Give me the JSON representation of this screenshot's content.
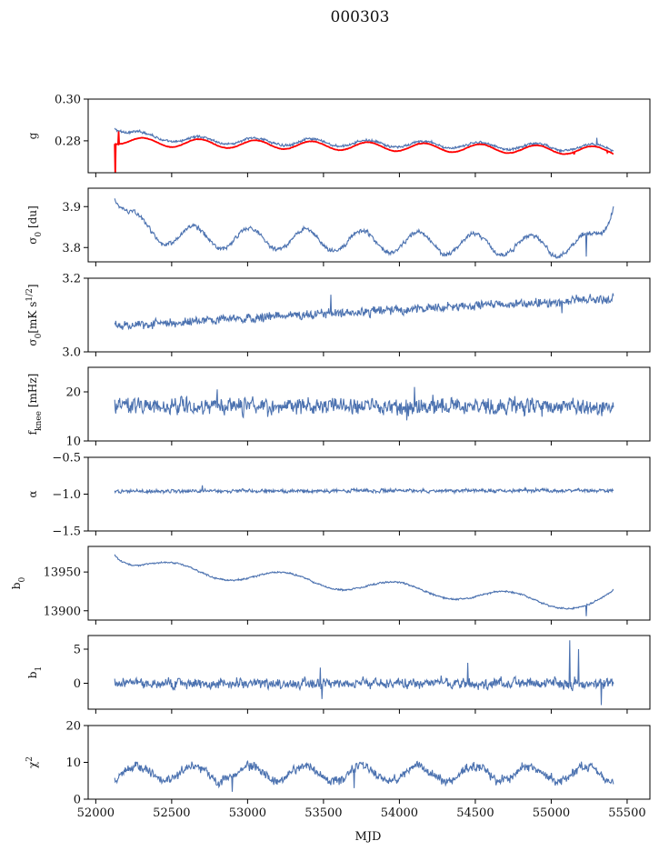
{
  "figure": {
    "title": "000303",
    "xlabel": "MJD"
  },
  "colors": {
    "series": "#4c72b0",
    "model": "#ff0000",
    "axes": "#000000"
  },
  "chart_data": {
    "type": "line",
    "shared_x": true,
    "xlim": [
      51950,
      55650
    ],
    "xticks": [
      52000,
      52500,
      53000,
      53500,
      54000,
      54500,
      55000,
      55500
    ],
    "x_range": [
      52125,
      55410
    ],
    "panels": [
      {
        "id": "g",
        "ylabel": "g",
        "ylim": [
          0.2647,
          0.3
        ],
        "yticks": [
          0.28,
          0.3
        ],
        "ytick_labels": [
          "0.28",
          "0.30"
        ],
        "series": [
          {
            "role": "data",
            "base": 0.281,
            "start_level": 0.2872,
            "start_decay_days": 150,
            "trend_end": 0.2765,
            "osc_amp": 0.0016,
            "osc_period_days": 370,
            "osc_phase_days": 52590,
            "noise": 0.00045,
            "spikes": [
              {
                "x": 55300,
                "y": 0.2815
              }
            ]
          },
          {
            "role": "model",
            "base": 0.2795,
            "start_level": 0.2805,
            "start_decay_days": 100,
            "trend_end": 0.2752,
            "osc_amp": 0.002,
            "osc_period_days": 370,
            "osc_phase_days": 52590,
            "noise": 8e-05,
            "spikes": [
              {
                "x": 52130,
                "y": 0.2635
              },
              {
                "x": 52150,
                "y": 0.2845
              },
              {
                "x": 55150,
                "y": 0.2735
              },
              {
                "x": 55370,
                "y": 0.2745
              }
            ]
          }
        ]
      },
      {
        "id": "sigma0-du",
        "ylabel": "σ0 [du]",
        "ylim": [
          3.765,
          3.945
        ],
        "yticks": [
          3.8,
          3.9
        ],
        "ytick_labels": [
          "3.8",
          "3.9"
        ],
        "series": [
          {
            "role": "data",
            "base": 3.83,
            "start_level": 3.935,
            "start_decay_days": 110,
            "trend_end": 3.8,
            "osc_amp": 0.026,
            "osc_period_days": 370,
            "osc_phase_days": 52550,
            "noise": 0.004,
            "end_level": 3.9,
            "end_rise_days": 80,
            "spikes": [
              {
                "x": 55230,
                "y": 3.778
              }
            ]
          }
        ]
      },
      {
        "id": "sigma0-mk",
        "ylabel": "σ0[mK s^1/2]",
        "ylim": [
          3.0,
          3.2
        ],
        "yticks": [
          3.0,
          3.2
        ],
        "ytick_labels": [
          "3.0",
          "3.2"
        ],
        "series": [
          {
            "role": "data",
            "base": 3.072,
            "start_level": 3.072,
            "start_decay_days": 50,
            "trend_end": 3.145,
            "osc_amp": 0.0,
            "osc_period_days": 370,
            "osc_phase_days": 52550,
            "noise": 0.009,
            "spikes": [
              {
                "x": 53550,
                "y": 3.155
              },
              {
                "x": 55070,
                "y": 3.105
              }
            ]
          }
        ]
      },
      {
        "id": "fknee",
        "ylabel": "f_knee [mHz]",
        "ylim": [
          10,
          25
        ],
        "yticks": [
          10,
          20
        ],
        "ytick_labels": [
          "10",
          "20"
        ],
        "series": [
          {
            "role": "data",
            "base": 17.0,
            "start_level": 17.0,
            "start_decay_days": 50,
            "trend_end": 17.0,
            "osc_amp": 0.0,
            "osc_period_days": 370,
            "osc_phase_days": 52550,
            "noise": 1.2,
            "spikes": [
              {
                "x": 52800,
                "y": 20.5
              },
              {
                "x": 54100,
                "y": 21.0
              },
              {
                "x": 54050,
                "y": 14.2
              }
            ]
          }
        ]
      },
      {
        "id": "alpha",
        "ylabel": "α",
        "ylim": [
          -1.5,
          -0.5
        ],
        "yticks": [
          -1.5,
          -1.0,
          -0.5
        ],
        "ytick_labels": [
          "−1.5",
          "−1.0",
          "−0.5"
        ],
        "series": [
          {
            "role": "data",
            "base": -0.96,
            "start_level": -0.96,
            "start_decay_days": 50,
            "trend_end": -0.95,
            "osc_amp": 0.0,
            "osc_period_days": 370,
            "osc_phase_days": 52550,
            "noise": 0.018,
            "spikes": [
              {
                "x": 52700,
                "y": -0.88
              }
            ]
          }
        ]
      },
      {
        "id": "b0",
        "ylabel": "b0",
        "ylim": [
          13888,
          13983
        ],
        "yticks": [
          13900,
          13950
        ],
        "ytick_labels": [
          "13900",
          "13950"
        ],
        "series": [
          {
            "role": "data",
            "base": 13960,
            "start_level": 13980,
            "start_decay_days": 90,
            "trend_end": 13905,
            "osc_amp": 8,
            "osc_period_days": 740,
            "osc_phase_days": 52310,
            "noise": 0.8,
            "end_level": 13927,
            "end_rise_days": 80,
            "spikes": [
              {
                "x": 55230,
                "y": 13893
              }
            ]
          }
        ]
      },
      {
        "id": "b1",
        "ylabel": "b1",
        "ylim": [
          -3.8,
          7.0
        ],
        "yticks": [
          0,
          5
        ],
        "ytick_labels": [
          "0",
          "5"
        ],
        "series": [
          {
            "role": "data",
            "base": 0.0,
            "start_level": 0.0,
            "start_decay_days": 50,
            "trend_end": 0.0,
            "osc_amp": 0.0,
            "osc_period_days": 370,
            "osc_phase_days": 52550,
            "noise": 0.55,
            "spikes": [
              {
                "x": 53480,
                "y": 2.3
              },
              {
                "x": 53490,
                "y": -2.3
              },
              {
                "x": 54450,
                "y": 3.0
              },
              {
                "x": 55120,
                "y": 6.3
              },
              {
                "x": 55180,
                "y": 5.0
              },
              {
                "x": 55330,
                "y": -3.2
              }
            ]
          }
        ]
      },
      {
        "id": "chi2",
        "ylabel": "χ2",
        "ylim": [
          0,
          20
        ],
        "yticks": [
          0,
          10,
          20
        ],
        "ytick_labels": [
          "0",
          "10",
          "20"
        ],
        "series": [
          {
            "role": "data",
            "base": 7.0,
            "start_level": 7.0,
            "start_decay_days": 50,
            "trend_end": 7.0,
            "osc_amp": 2.0,
            "osc_period_days": 370,
            "osc_phase_days": 52550,
            "noise": 0.9,
            "spikes": [
              {
                "x": 52900,
                "y": 2.0
              },
              {
                "x": 53700,
                "y": 3.0
              }
            ]
          }
        ]
      }
    ]
  }
}
